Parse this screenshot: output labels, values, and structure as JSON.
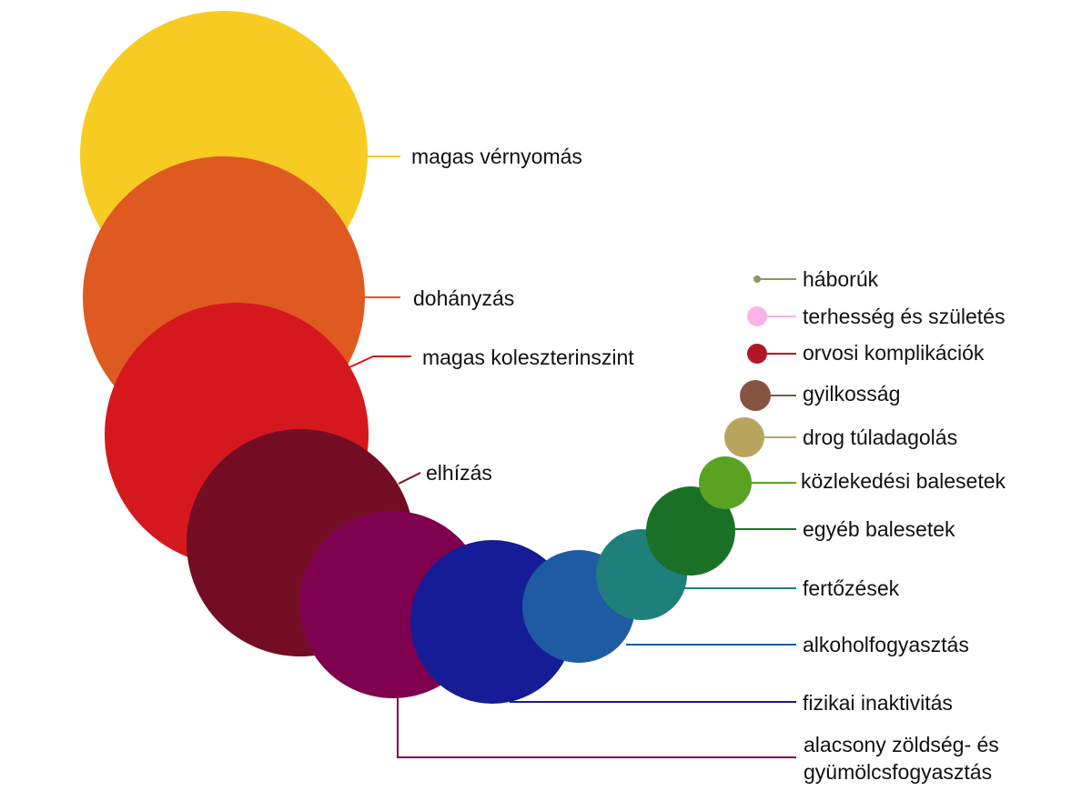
{
  "items": [
    {
      "label": "magas vérnyomás",
      "color": "#F7CB22"
    },
    {
      "label": "dohányzás",
      "color": "#DE5A20"
    },
    {
      "label": "magas koleszterinszint",
      "color": "#D5171E"
    },
    {
      "label": "elhízás",
      "color": "#730D24"
    },
    {
      "label": "alacsony zöldség- és gyümölcsfogyasztás",
      "color": "#800050"
    },
    {
      "label": "fizikai inaktivitás",
      "color": "#151C96"
    },
    {
      "label": "alkoholfogyasztás",
      "color": "#1F5BA3"
    },
    {
      "label": "fertőzések",
      "color": "#1F7F7A"
    },
    {
      "label": "egyéb balesetek",
      "color": "#1B7028"
    },
    {
      "label": "közlekedési balesetek",
      "color": "#5AA322"
    },
    {
      "label": "drog túladagolás",
      "color": "#B9A55E"
    },
    {
      "label": "gyilkosság",
      "color": "#885442"
    },
    {
      "label": "orvosi komplikációk",
      "color": "#B01725"
    },
    {
      "label": "terhesség és születés",
      "color": "#F9B3E7"
    },
    {
      "label": "háborúk",
      "color": "#8E9660"
    }
  ]
}
